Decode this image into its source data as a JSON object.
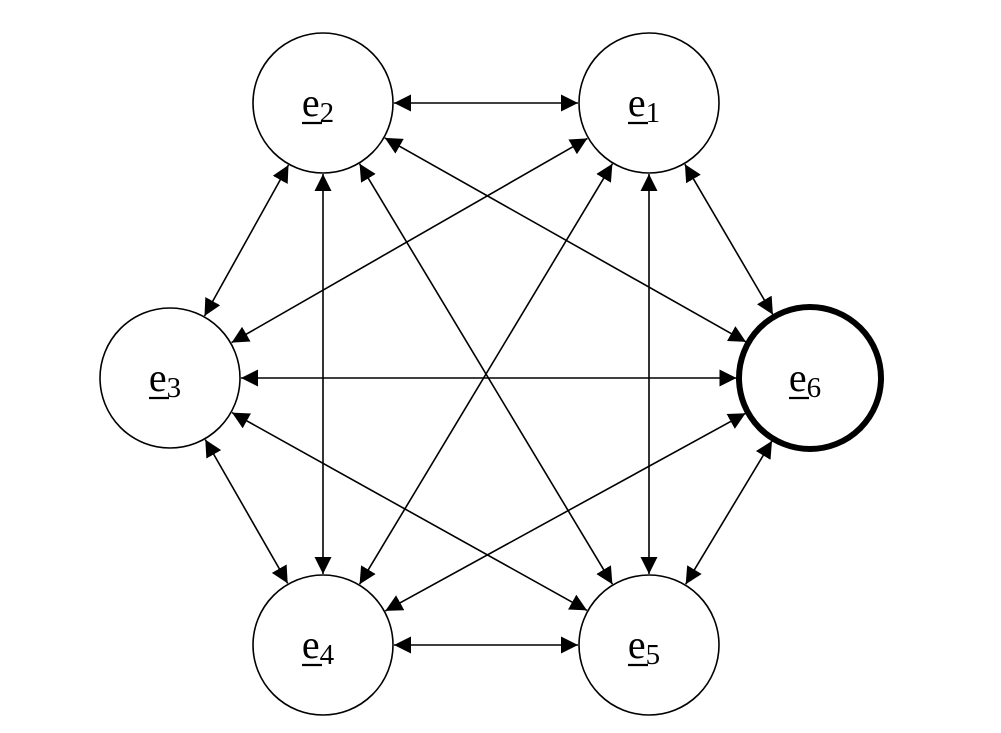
{
  "diagram": {
    "type": "complete-graph",
    "colors": {
      "stroke": "#000000",
      "fill": "#ffffff"
    },
    "nodes": [
      {
        "id": "e1",
        "letter": "e",
        "subscript": "1",
        "underlined": true,
        "highlighted": false
      },
      {
        "id": "e2",
        "letter": "e",
        "subscript": "2",
        "underlined": true,
        "highlighted": false
      },
      {
        "id": "e3",
        "letter": "e",
        "subscript": "3",
        "underlined": true,
        "highlighted": false
      },
      {
        "id": "e4",
        "letter": "e",
        "subscript": "4",
        "underlined": true,
        "highlighted": false
      },
      {
        "id": "e5",
        "letter": "e",
        "subscript": "5",
        "underlined": true,
        "highlighted": false
      },
      {
        "id": "e6",
        "letter": "e",
        "subscript": "6",
        "underlined": true,
        "highlighted": true
      }
    ],
    "edges": [
      {
        "from": "e1",
        "to": "e2",
        "direction": "both"
      },
      {
        "from": "e1",
        "to": "e3",
        "direction": "both"
      },
      {
        "from": "e1",
        "to": "e4",
        "direction": "both"
      },
      {
        "from": "e1",
        "to": "e5",
        "direction": "both"
      },
      {
        "from": "e1",
        "to": "e6",
        "direction": "both"
      },
      {
        "from": "e2",
        "to": "e3",
        "direction": "both"
      },
      {
        "from": "e2",
        "to": "e4",
        "direction": "both"
      },
      {
        "from": "e2",
        "to": "e5",
        "direction": "both"
      },
      {
        "from": "e2",
        "to": "e6",
        "direction": "both"
      },
      {
        "from": "e3",
        "to": "e4",
        "direction": "both"
      },
      {
        "from": "e3",
        "to": "e5",
        "direction": "both"
      },
      {
        "from": "e3",
        "to": "e6",
        "direction": "both"
      },
      {
        "from": "e4",
        "to": "e5",
        "direction": "both"
      },
      {
        "from": "e4",
        "to": "e6",
        "direction": "both"
      },
      {
        "from": "e5",
        "to": "e6",
        "direction": "both"
      }
    ]
  }
}
